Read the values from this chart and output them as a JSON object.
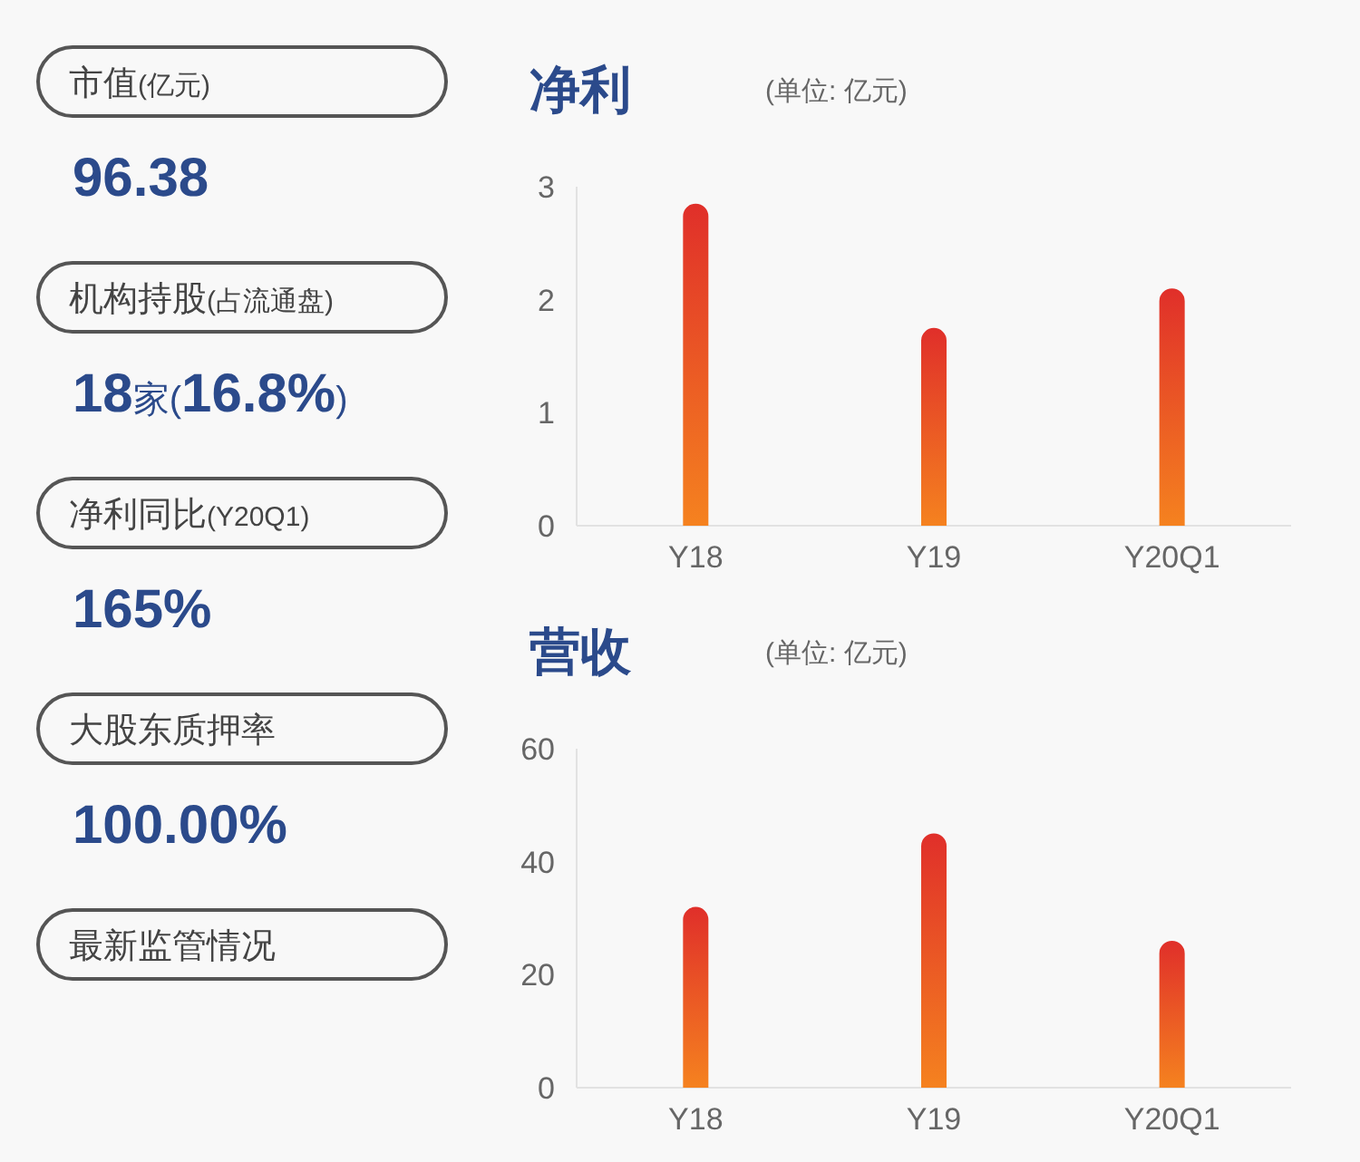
{
  "chart_data": [
    {
      "type": "other",
      "annotations": [
        "市值(亿元)",
        "96.38",
        "机构持股(占流通盘)",
        "18家(16.8%)",
        "净利同比(Y20Q1)",
        "165%",
        "大股东质押率",
        "100.00%",
        "最新监管情况"
      ]
    },
    {
      "type": "bar",
      "title": "净利",
      "subtitle": "(单位: 亿元)",
      "categories": [
        "Y18",
        "Y19",
        "Y20Q1"
      ],
      "series": [
        {
          "color": "#e02f2a",
          "values": [
            2.85,
            1.75,
            2.1
          ]
        }
      ],
      "ylim": [
        0,
        3
      ],
      "yticks": [
        0,
        1,
        2,
        3
      ]
    },
    {
      "type": "bar",
      "title": "营收",
      "subtitle": "(单位: 亿元)",
      "categories": [
        "Y18",
        "Y19",
        "Y20Q1"
      ],
      "series": [
        {
          "color": "#e02f2a",
          "values": [
            32,
            45,
            26
          ]
        }
      ],
      "ylim": [
        0,
        60
      ],
      "yticks": [
        0,
        20,
        40,
        60
      ]
    }
  ]
}
